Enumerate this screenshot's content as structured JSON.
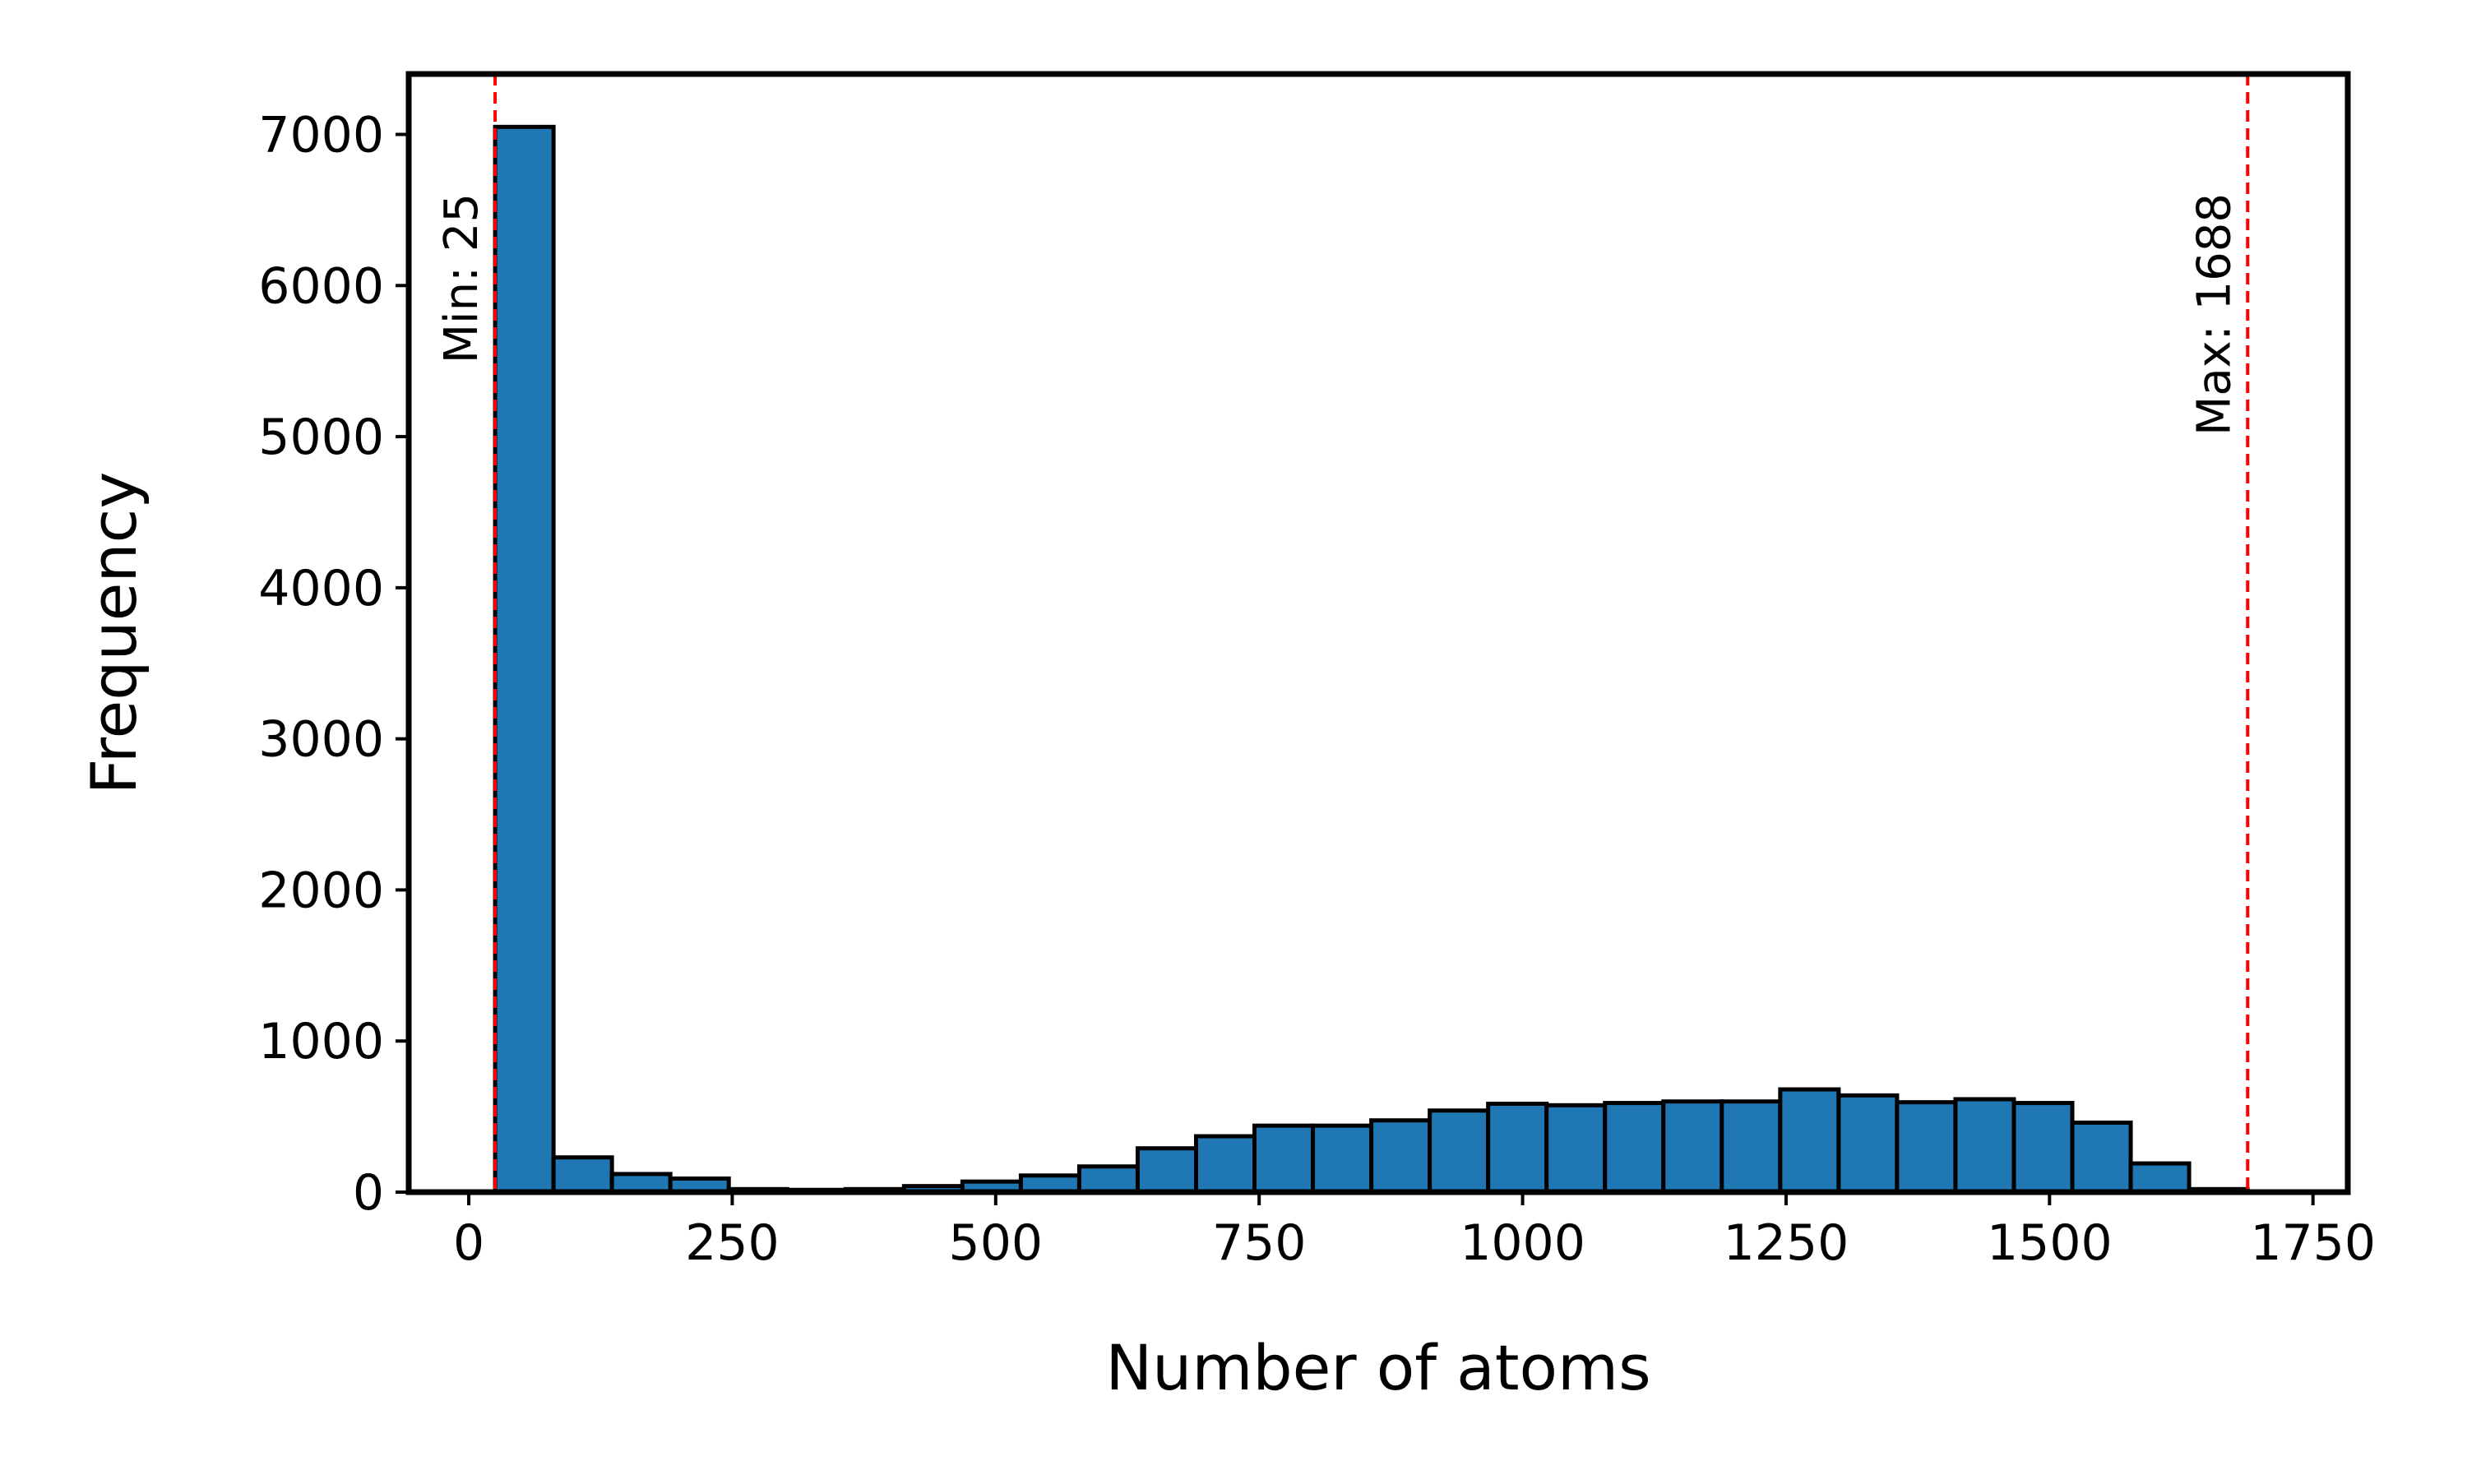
{
  "chart_data": {
    "type": "bar",
    "title": "",
    "xlabel": "Number of atoms",
    "ylabel": "Frequency",
    "xlim": [
      -57,
      1783
    ],
    "ylim": [
      0,
      7400
    ],
    "xticks": [
      0,
      250,
      500,
      750,
      1000,
      1250,
      1500,
      1750
    ],
    "yticks": [
      0,
      1000,
      2000,
      3000,
      4000,
      5000,
      6000,
      7000
    ],
    "grid": false,
    "bar_color": "#1f77b4",
    "bar_edge_color": "#000000",
    "reference_line_color": "#ff0000",
    "bins": {
      "start": 25,
      "width": 55.43,
      "values": [
        7050,
        230,
        120,
        90,
        20,
        15,
        20,
        40,
        70,
        110,
        170,
        290,
        370,
        440,
        440,
        475,
        540,
        585,
        575,
        590,
        600,
        600,
        680,
        640,
        595,
        615,
        590,
        460,
        190,
        20
      ]
    },
    "annotations": [
      {
        "x": 25,
        "label": "Min: 25"
      },
      {
        "x": 1688,
        "label": "Max: 1688"
      }
    ]
  }
}
